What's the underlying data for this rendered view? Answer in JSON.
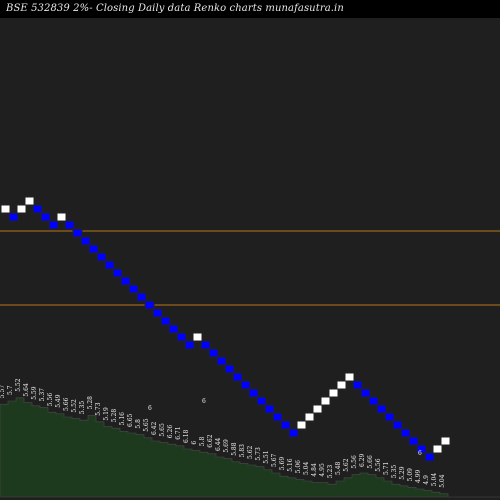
{
  "title": "BSE 532839 2%-  Closing Daily data  Renko  charts munafasutra.in",
  "colors": {
    "background": "#000000",
    "panel": "#1f1f1f",
    "up_brick": "#ffffff",
    "down_brick": "#0000ff",
    "brick_border": "#222222",
    "reference_line": "#b8741a",
    "volume_fill": "#1e3a1e",
    "volume_stroke": "#4a4a4a",
    "label_text": "#f0f0f0"
  },
  "chart_data": {
    "type": "renko",
    "box_size_pct": 2,
    "bricks": [
      "up",
      "down",
      "up",
      "up",
      "down",
      "down",
      "down",
      "up",
      "down",
      "down",
      "down",
      "down",
      "down",
      "down",
      "down",
      "down",
      "down",
      "down",
      "down",
      "down",
      "down",
      "down",
      "down",
      "down",
      "up",
      "down",
      "down",
      "down",
      "down",
      "down",
      "down",
      "down",
      "down",
      "down",
      "down",
      "down",
      "down",
      "up",
      "up",
      "up",
      "up",
      "up",
      "up",
      "up",
      "down",
      "down",
      "down",
      "down",
      "down",
      "down",
      "down",
      "down",
      "down",
      "down",
      "up",
      "up"
    ],
    "reference_lines": [
      {
        "level": 12.8,
        "label": ""
      },
      {
        "level": 4.4,
        "label": ""
      }
    ],
    "volume": {
      "values": [
        58,
        60,
        62,
        59,
        57,
        56,
        53,
        52,
        50,
        49,
        48,
        51,
        47,
        44,
        43,
        41,
        40,
        39,
        37,
        35,
        34,
        33,
        32,
        30,
        29,
        28,
        27,
        25,
        24,
        22,
        21,
        20,
        19,
        17,
        15,
        13,
        12,
        11,
        10,
        9,
        9,
        8,
        10,
        12,
        14,
        15,
        14,
        12,
        10,
        8,
        7,
        6,
        5,
        4,
        3,
        2
      ],
      "labels": [
        "5.57",
        "5.7",
        "5.52",
        "5.64",
        "5.59",
        "5.37",
        "5.56",
        "5.49",
        "5.66",
        "5.52",
        "5.35",
        "5.28",
        "5.73",
        "5.19",
        "5.28",
        "5.16",
        "6.65",
        "5.8",
        "5.65",
        "6.42",
        "5.65",
        "6.26",
        "6.71",
        "6.18",
        "6",
        "5.8",
        "6.62",
        "6.44",
        "5.69",
        "5.88",
        "5.83",
        "5.62",
        "5.73",
        "5.51",
        "5.67",
        "5.69",
        "5.16",
        "5.06",
        "5.04",
        "4.84",
        "4.95",
        "5.23",
        "5.48",
        "5.62",
        "5.56",
        "6.29",
        "5.66",
        "5.56",
        "5.71",
        "5.35",
        "5.29",
        "5.09",
        "4.99",
        "4.9",
        "5.04",
        "5.04"
      ],
      "extra_labels": [
        "6",
        "6",
        "6"
      ]
    }
  }
}
